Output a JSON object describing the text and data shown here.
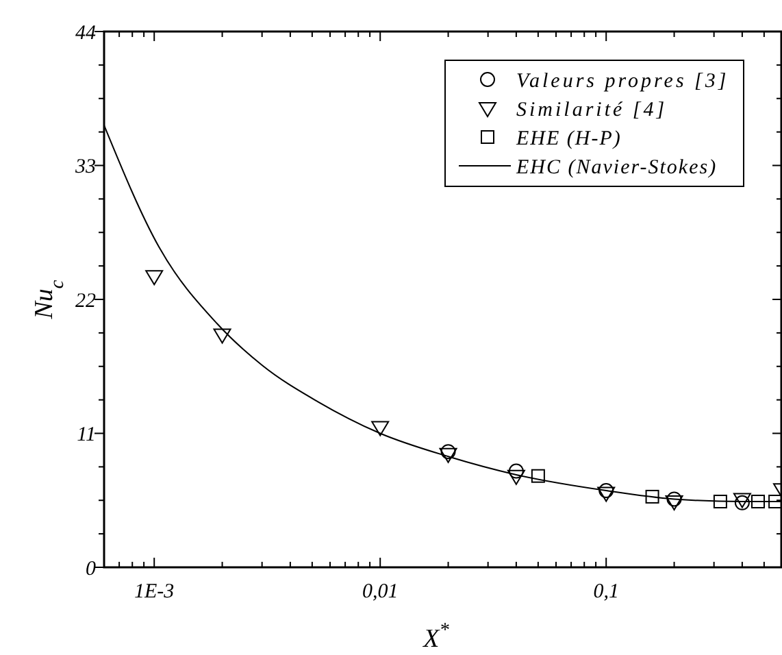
{
  "chart_data": {
    "type": "scatter",
    "xlabel": "X$^{*}$",
    "ylabel": "Nu$_{c}$",
    "log": "x",
    "xlim": [
      0.0006,
      0.6
    ],
    "ylim": [
      0,
      44
    ],
    "xticks": [
      {
        "value": 0.0007,
        "label": null
      },
      {
        "value": 0.0008,
        "label": null
      },
      {
        "value": 0.0009,
        "label": null
      },
      {
        "value": 0.001,
        "label": "1E-3"
      },
      {
        "value": 0.002,
        "label": null
      },
      {
        "value": 0.003,
        "label": null
      },
      {
        "value": 0.004,
        "label": null
      },
      {
        "value": 0.005,
        "label": null
      },
      {
        "value": 0.006,
        "label": null
      },
      {
        "value": 0.007,
        "label": null
      },
      {
        "value": 0.008,
        "label": null
      },
      {
        "value": 0.009,
        "label": null
      },
      {
        "value": 0.01,
        "label": "0,01"
      },
      {
        "value": 0.02,
        "label": null
      },
      {
        "value": 0.03,
        "label": null
      },
      {
        "value": 0.04,
        "label": null
      },
      {
        "value": 0.05,
        "label": null
      },
      {
        "value": 0.06,
        "label": null
      },
      {
        "value": 0.07,
        "label": null
      },
      {
        "value": 0.08,
        "label": null
      },
      {
        "value": 0.09,
        "label": null
      },
      {
        "value": 0.1,
        "label": "0,1"
      },
      {
        "value": 0.2,
        "label": null
      },
      {
        "value": 0.3,
        "label": null
      },
      {
        "value": 0.4,
        "label": null
      },
      {
        "value": 0.5,
        "label": null
      }
    ],
    "yticks": [
      0,
      {
        "value": 2.75,
        "label": null
      },
      {
        "value": 5.5,
        "label": null
      },
      {
        "value": 8.25,
        "label": null
      },
      11,
      {
        "value": 13.75,
        "label": null
      },
      {
        "value": 16.5,
        "label": null
      },
      {
        "value": 19.25,
        "label": null
      },
      22,
      {
        "value": 24.75,
        "label": null
      },
      {
        "value": 27.5,
        "label": null
      },
      {
        "value": 30.25,
        "label": null
      },
      33,
      {
        "value": 35.75,
        "label": null
      },
      {
        "value": 38.5,
        "label": null
      },
      {
        "value": 41.25,
        "label": null
      },
      44
    ],
    "grid": false,
    "legend": "top right",
    "series": [
      {
        "name": "Valeurs propres [3]",
        "marker": "circle",
        "color": "#000000",
        "x": [
          0.02,
          0.04,
          0.1,
          0.2,
          0.4
        ],
        "values": [
          9.5,
          7.9,
          6.3,
          5.6,
          5.3
        ]
      },
      {
        "name": "Similarité [4]",
        "marker": "triangle",
        "color": "#000000",
        "x": [
          0.001,
          0.002,
          0.01,
          0.02,
          0.04,
          0.1,
          0.2,
          0.4,
          0.6
        ],
        "values": [
          23.9,
          19.1,
          11.5,
          9.3,
          7.5,
          6.1,
          5.4,
          5.6,
          6.4
        ]
      },
      {
        "name": "EHE (H-P)",
        "marker": "square",
        "color": "#000000",
        "x": [
          0.05,
          0.16,
          0.32,
          0.47,
          0.56
        ],
        "values": [
          7.5,
          5.8,
          5.4,
          5.4,
          5.4
        ]
      },
      {
        "name": "EHC (Navier-Stokes)",
        "type": "line",
        "marker": "none",
        "line_style": "solid",
        "color": "#000000",
        "x": [
          0.0006,
          0.00105,
          0.0019,
          0.003,
          0.0053,
          0.01,
          0.02,
          0.04,
          0.1,
          0.2,
          0.4,
          0.6
        ],
        "values": [
          36.3,
          26.3,
          20.0,
          16.6,
          13.6,
          11.0,
          9.1,
          7.6,
          6.3,
          5.6,
          5.4,
          5.4
        ]
      }
    ]
  }
}
